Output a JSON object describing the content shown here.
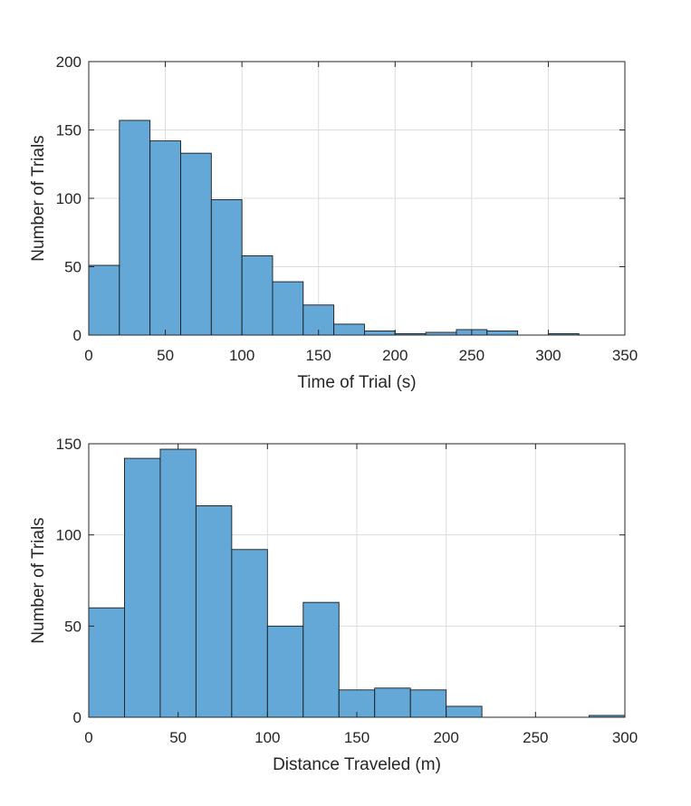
{
  "colors": {
    "bar_fill": "#64a8d8",
    "bar_edge": "#1a1a1a",
    "axis": "#262626",
    "grid": "#dcdcdc",
    "background": "#ffffff"
  },
  "chart_data": [
    {
      "type": "bar",
      "subtype": "histogram",
      "xlabel": "Time of Trial (s)",
      "ylabel": "Number of Trials",
      "xlim": [
        0,
        350
      ],
      "ylim": [
        0,
        200
      ],
      "xticks": [
        0,
        50,
        100,
        150,
        200,
        250,
        300,
        350
      ],
      "yticks": [
        0,
        50,
        100,
        150,
        200
      ],
      "grid": true,
      "bin_edges": [
        0,
        20,
        40,
        60,
        80,
        100,
        120,
        140,
        160,
        180,
        200,
        220,
        240,
        260,
        280,
        300,
        320
      ],
      "values": [
        51,
        157,
        142,
        133,
        99,
        58,
        39,
        22,
        8,
        3,
        1,
        2,
        4,
        3,
        0,
        1
      ]
    },
    {
      "type": "bar",
      "subtype": "histogram",
      "xlabel": "Distance Traveled (m)",
      "ylabel": "Number of Trials",
      "xlim": [
        0,
        300
      ],
      "ylim": [
        0,
        150
      ],
      "xticks": [
        0,
        50,
        100,
        150,
        200,
        250,
        300
      ],
      "yticks": [
        0,
        50,
        100,
        150
      ],
      "grid": true,
      "bin_edges": [
        0,
        20,
        40,
        60,
        80,
        100,
        120,
        140,
        160,
        180,
        200,
        220,
        240,
        260,
        280,
        300
      ],
      "values": [
        60,
        142,
        147,
        116,
        92,
        50,
        63,
        15,
        16,
        15,
        6,
        0,
        0,
        0,
        1
      ]
    }
  ]
}
